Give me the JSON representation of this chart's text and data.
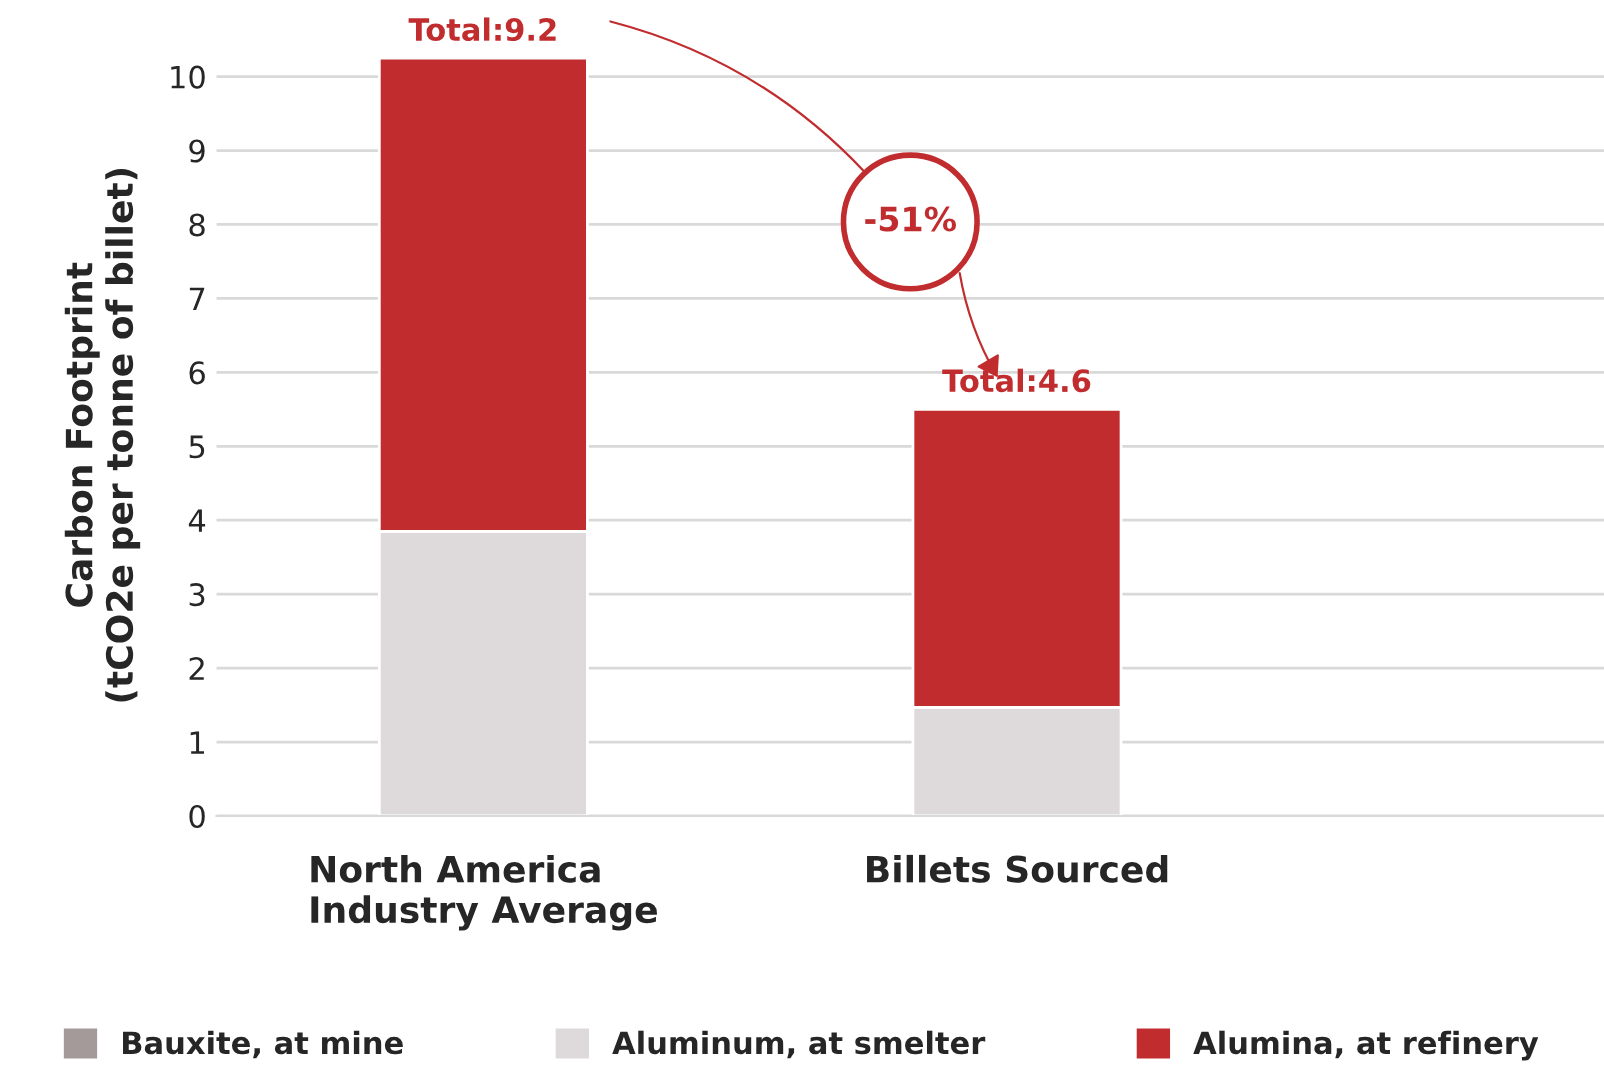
{
  "chart_data": {
    "type": "bar",
    "stacked": true,
    "ylabel": "Carbon Footprint\n(tCO2e per tonne of billet)",
    "categories": [
      "North America\nIndustry Average",
      "Billets Sourced"
    ],
    "series": [
      {
        "name": "Bauxite, at mine",
        "color": "#a49a9a",
        "values": [
          0,
          0
        ]
      },
      {
        "name": "Aluminum, at smelter",
        "color": "#dedadb",
        "values": [
          3.85,
          1.47
        ]
      },
      {
        "name": "Alumina, at refinery",
        "color": "#c12d2f",
        "values": [
          6.4,
          4.03
        ]
      }
    ],
    "annotations": [
      {
        "text": "Total:9.2",
        "x": "North America\nIndustry Average",
        "y": 10.25
      },
      {
        "text": "Total:4.6",
        "x": "Billets Sourced",
        "y": 5.5
      },
      "-51%"
    ],
    "ylim": [
      0,
      10.3
    ],
    "yticks": [
      0,
      1,
      2,
      3,
      4,
      5,
      6,
      7,
      8,
      9,
      10
    ],
    "grid": "y",
    "legend": "bottom"
  }
}
